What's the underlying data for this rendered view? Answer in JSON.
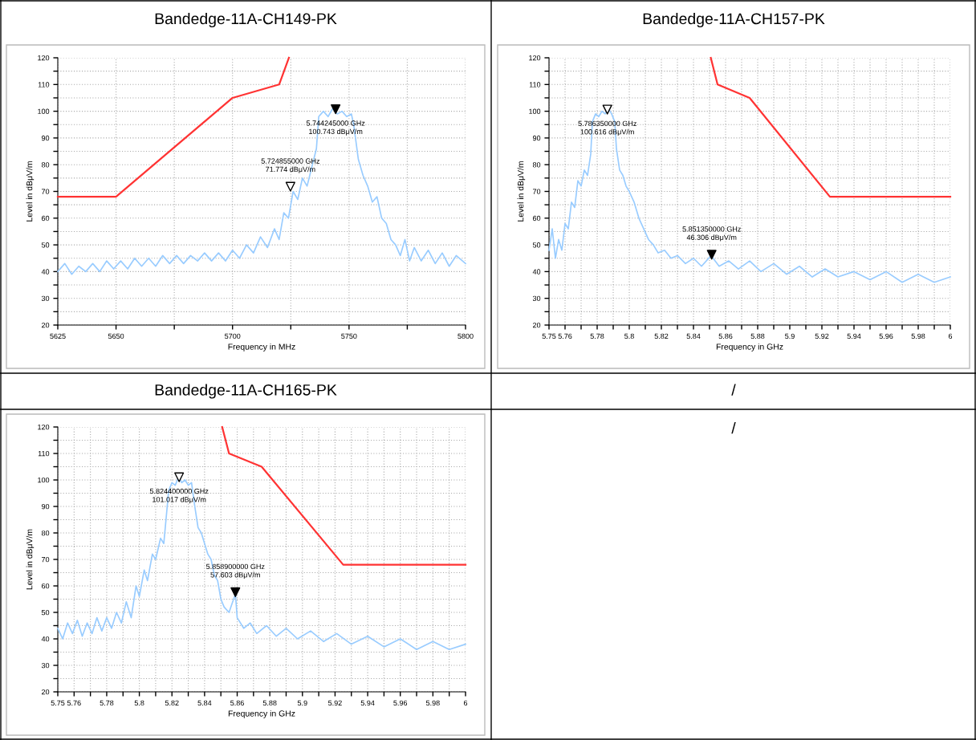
{
  "chart_data": [
    {
      "type": "line",
      "title": "Bandedge-11A-CH149-PK",
      "xlabel": "Frequency in MHz",
      "ylabel": "Level in dBμV/m",
      "grid": true,
      "xlim": [
        5625,
        5800
      ],
      "ylim": [
        20,
        120
      ],
      "xticks": [
        5625,
        5650,
        {
          "value": 5675,
          "label": null
        },
        5700,
        {
          "value": 5725,
          "label": null
        },
        5750,
        {
          "value": 5775,
          "label": null
        },
        5800
      ],
      "yticks": [
        20,
        {
          "value": 25,
          "label": null
        },
        30,
        {
          "value": 35,
          "label": null
        },
        40,
        {
          "value": 45,
          "label": null
        },
        50,
        {
          "value": 55,
          "label": null
        },
        60,
        {
          "value": 65,
          "label": null
        },
        70,
        {
          "value": 75,
          "label": null
        },
        80,
        {
          "value": 85,
          "label": null
        },
        90,
        {
          "value": 95,
          "label": null
        },
        100,
        {
          "value": 105,
          "label": null
        },
        110,
        {
          "value": 115,
          "label": null
        },
        120
      ],
      "series": [
        {
          "color": "#99ccff",
          "x": [
            5625,
            5628,
            5631,
            5634,
            5637,
            5640,
            5643,
            5646,
            5649,
            5652,
            5655,
            5658,
            5661,
            5664,
            5667,
            5670,
            5673,
            5676,
            5679,
            5682,
            5685,
            5688,
            5691,
            5694,
            5697,
            5700,
            5703,
            5706,
            5709,
            5712,
            5715,
            5718,
            5720,
            5722,
            5724,
            5726,
            5728,
            5730,
            5732,
            5734,
            5736,
            5737,
            5739,
            5741,
            5743,
            5745,
            5747,
            5749,
            5751,
            5752,
            5754,
            5756,
            5758,
            5760,
            5762,
            5764,
            5766,
            5768,
            5770,
            5772,
            5774,
            5776,
            5778,
            5781,
            5784,
            5787,
            5790,
            5793,
            5796,
            5800
          ],
          "values": [
            40,
            43,
            39,
            42,
            40,
            43,
            40,
            44,
            41,
            44,
            41,
            45,
            42,
            45,
            42,
            46,
            43,
            46,
            43,
            46,
            44,
            47,
            44,
            47,
            44,
            48,
            45,
            50,
            47,
            53,
            49,
            56,
            52,
            62,
            60,
            70,
            67,
            75,
            72,
            79,
            86,
            98,
            100,
            98,
            101,
            99,
            100,
            98,
            99,
            95,
            82,
            76,
            72,
            66,
            68,
            60,
            58,
            52,
            50,
            46,
            52,
            44,
            49,
            44,
            48,
            43,
            47,
            42,
            46,
            43
          ]
        },
        {
          "color": "#ff3333",
          "x": [
            5625,
            5650,
            5700,
            5720,
            5724.2
          ],
          "values": [
            68,
            68,
            105,
            110,
            120
          ]
        },
        {
          "type": "scatter",
          "marker": "triangle",
          "x": [
            5744.245,
            5724.855
          ],
          "values": [
            100.743,
            71.774
          ],
          "colors": [
            "#000000",
            "#ffffff"
          ]
        }
      ],
      "annotations": [
        {
          "text": "5.744245000 GHz\n100.743 dBμV/m",
          "x": 5744.245,
          "y": 100.743
        },
        {
          "text": "5.724855000 GHz\n71.774 dBμV/m",
          "x": 5724.855,
          "y": 71.774
        }
      ]
    },
    {
      "type": "line",
      "title": "Bandedge-11A-CH157-PK",
      "xlabel": "Frequency in GHz",
      "ylabel": "Level in dBμV/m",
      "grid": true,
      "xlim": [
        5.75,
        6
      ],
      "ylim": [
        20,
        120
      ],
      "xticks": [
        5.75,
        5.76,
        {
          "value": 5.77,
          "label": null
        },
        5.78,
        {
          "value": 5.79,
          "label": null
        },
        5.8,
        {
          "value": 5.81,
          "label": null
        },
        5.82,
        {
          "value": 5.83,
          "label": null
        },
        5.84,
        {
          "value": 5.85,
          "label": null
        },
        5.86,
        {
          "value": 5.87,
          "label": null
        },
        5.88,
        {
          "value": 5.89,
          "label": null
        },
        5.9,
        {
          "value": 5.91,
          "label": null
        },
        5.92,
        {
          "value": 5.93,
          "label": null
        },
        5.94,
        {
          "value": 5.95,
          "label": null
        },
        5.96,
        {
          "value": 5.97,
          "label": null
        },
        5.98,
        {
          "value": 5.99,
          "label": null
        },
        6
      ],
      "yticks": [
        20,
        {
          "value": 25,
          "label": null
        },
        30,
        {
          "value": 35,
          "label": null
        },
        40,
        {
          "value": 45,
          "label": null
        },
        50,
        {
          "value": 55,
          "label": null
        },
        60,
        {
          "value": 65,
          "label": null
        },
        70,
        {
          "value": 75,
          "label": null
        },
        80,
        {
          "value": 85,
          "label": null
        },
        90,
        {
          "value": 95,
          "label": null
        },
        100,
        {
          "value": 105,
          "label": null
        },
        110,
        {
          "value": 115,
          "label": null
        },
        120
      ],
      "series": [
        {
          "color": "#99ccff",
          "x": [
            5.75,
            5.752,
            5.754,
            5.756,
            5.758,
            5.76,
            5.762,
            5.764,
            5.766,
            5.768,
            5.77,
            5.772,
            5.774,
            5.776,
            5.777,
            5.779,
            5.781,
            5.783,
            5.785,
            5.787,
            5.789,
            5.791,
            5.792,
            5.794,
            5.796,
            5.798,
            5.8,
            5.803,
            5.806,
            5.809,
            5.812,
            5.815,
            5.818,
            5.822,
            5.826,
            5.83,
            5.835,
            5.84,
            5.845,
            5.851,
            5.856,
            5.862,
            5.868,
            5.875,
            5.882,
            5.89,
            5.898,
            5.906,
            5.914,
            5.922,
            5.93,
            5.94,
            5.95,
            5.96,
            5.97,
            5.98,
            5.99,
            6
          ],
          "values": [
            48,
            56,
            45,
            52,
            48,
            58,
            56,
            66,
            64,
            74,
            72,
            78,
            76,
            84,
            96,
            99,
            98,
            100,
            99,
            101,
            99,
            96,
            86,
            78,
            76,
            72,
            70,
            66,
            60,
            56,
            52,
            50,
            47,
            48,
            45,
            46,
            43,
            45,
            42,
            46,
            42,
            44,
            41,
            44,
            40,
            43,
            39,
            42,
            38,
            41,
            38,
            40,
            37,
            40,
            36,
            39,
            36,
            38
          ]
        },
        {
          "color": "#ff3333",
          "x": [
            5.8508,
            5.855,
            5.875,
            5.925,
            6
          ],
          "values": [
            120,
            110,
            105,
            68,
            68
          ]
        },
        {
          "type": "scatter",
          "marker": "triangle",
          "x": [
            5.78635,
            5.85135
          ],
          "values": [
            100.616,
            46.306
          ],
          "colors": [
            "#ffffff",
            "#000000"
          ]
        }
      ],
      "annotations": [
        {
          "text": "5.786350000 GHz\n100.616 dBμV/m",
          "x": 5.78635,
          "y": 100.616
        },
        {
          "text": "5.851350000 GHz\n46.306 dBμV/m",
          "x": 5.85135,
          "y": 46.306
        }
      ]
    },
    {
      "type": "line",
      "title": "Bandedge-11A-CH165-PK",
      "xlabel": "Frequency in GHz",
      "ylabel": "Level in dBμV/m",
      "grid": true,
      "xlim": [
        5.75,
        6
      ],
      "ylim": [
        20,
        120
      ],
      "xticks": [
        5.75,
        5.76,
        {
          "value": 5.77,
          "label": null
        },
        5.78,
        {
          "value": 5.79,
          "label": null
        },
        5.8,
        {
          "value": 5.81,
          "label": null
        },
        5.82,
        {
          "value": 5.83,
          "label": null
        },
        5.84,
        {
          "value": 5.85,
          "label": null
        },
        5.86,
        {
          "value": 5.87,
          "label": null
        },
        5.88,
        {
          "value": 5.89,
          "label": null
        },
        5.9,
        {
          "value": 5.91,
          "label": null
        },
        5.92,
        {
          "value": 5.93,
          "label": null
        },
        5.94,
        {
          "value": 5.95,
          "label": null
        },
        5.96,
        {
          "value": 5.97,
          "label": null
        },
        5.98,
        {
          "value": 5.99,
          "label": null
        },
        6
      ],
      "yticks": [
        20,
        {
          "value": 25,
          "label": null
        },
        30,
        {
          "value": 35,
          "label": null
        },
        40,
        {
          "value": 45,
          "label": null
        },
        50,
        {
          "value": 55,
          "label": null
        },
        60,
        {
          "value": 65,
          "label": null
        },
        70,
        {
          "value": 75,
          "label": null
        },
        80,
        {
          "value": 85,
          "label": null
        },
        90,
        {
          "value": 95,
          "label": null
        },
        100,
        {
          "value": 105,
          "label": null
        },
        110,
        {
          "value": 115,
          "label": null
        },
        120
      ],
      "series": [
        {
          "color": "#99ccff",
          "x": [
            5.75,
            5.753,
            5.756,
            5.759,
            5.762,
            5.765,
            5.768,
            5.771,
            5.774,
            5.777,
            5.78,
            5.783,
            5.786,
            5.789,
            5.792,
            5.795,
            5.798,
            5.8,
            5.803,
            5.805,
            5.808,
            5.81,
            5.813,
            5.815,
            5.818,
            5.82,
            5.822,
            5.824,
            5.826,
            5.828,
            5.83,
            5.832,
            5.834,
            5.836,
            5.838,
            5.84,
            5.842,
            5.844,
            5.846,
            5.848,
            5.85,
            5.852,
            5.855,
            5.8589,
            5.86,
            5.864,
            5.868,
            5.872,
            5.878,
            5.884,
            5.89,
            5.897,
            5.905,
            5.913,
            5.921,
            5.93,
            5.94,
            5.95,
            5.96,
            5.97,
            5.98,
            5.99,
            6
          ],
          "values": [
            44,
            40,
            46,
            42,
            47,
            41,
            46,
            42,
            48,
            43,
            48,
            44,
            50,
            46,
            54,
            48,
            60,
            56,
            66,
            62,
            72,
            70,
            78,
            76,
            96,
            99,
            98,
            101,
            99,
            100,
            98,
            99,
            90,
            82,
            80,
            76,
            72,
            70,
            64,
            62,
            55,
            52,
            50,
            57,
            48,
            44,
            46,
            42,
            45,
            41,
            44,
            40,
            43,
            39,
            42,
            38,
            41,
            37,
            40,
            36,
            39,
            36,
            38
          ]
        },
        {
          "color": "#ff3333",
          "x": [
            5.8508,
            5.855,
            5.875,
            5.925,
            6
          ],
          "values": [
            120,
            110,
            105,
            68,
            68
          ]
        },
        {
          "type": "scatter",
          "marker": "triangle",
          "x": [
            5.8244,
            5.8589
          ],
          "values": [
            101.017,
            57.603
          ],
          "colors": [
            "#ffffff",
            "#000000"
          ]
        }
      ],
      "annotations": [
        {
          "text": "5.824400000 GHz\n101.017 dBμV/m",
          "x": 5.8244,
          "y": 101.017
        },
        {
          "text": "5.858900000 GHz\n57.603 dBμV/m",
          "x": 5.8589,
          "y": 57.603
        }
      ]
    },
    {
      "type": "other",
      "title": "/",
      "annotations": [
        "/"
      ]
    }
  ]
}
